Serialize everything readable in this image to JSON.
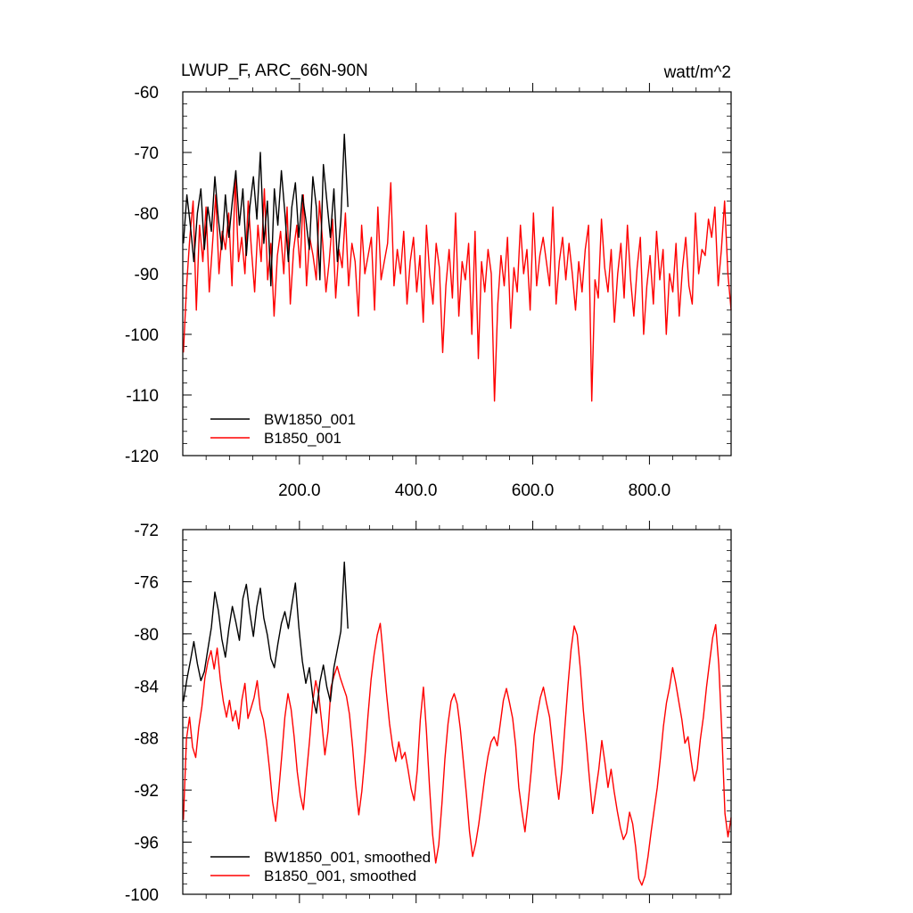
{
  "chart_data": [
    {
      "type": "line",
      "title": "LWUP_F, ARC_66N-90N",
      "units_label": "watt/m^2",
      "xlim": [
        0,
        940
      ],
      "ylim": [
        -120,
        -60
      ],
      "x_ticks": [
        200,
        400,
        600,
        800
      ],
      "x_tick_labels": [
        "200.0",
        "400.0",
        "600.0",
        "800.0"
      ],
      "y_ticks": [
        -120,
        -110,
        -100,
        -90,
        -80,
        -70,
        -60
      ],
      "y_tick_labels": [
        "-120",
        "-110",
        "-100",
        "-90",
        "-80",
        "-70",
        "-60"
      ],
      "legend_position": "bottom-left",
      "series": [
        {
          "name": "BW1850_001",
          "color": "#000000",
          "x_start": 1,
          "x_end": 283,
          "step": 6,
          "values": [
            -85,
            -77,
            -82,
            -88,
            -80,
            -76,
            -86,
            -79,
            -83,
            -74,
            -81,
            -86,
            -77,
            -84,
            -78,
            -73,
            -82,
            -76,
            -87,
            -79,
            -74,
            -81,
            -70,
            -85,
            -78,
            -92,
            -76,
            -82,
            -73,
            -80,
            -88,
            -79,
            -75,
            -84,
            -77,
            -81,
            -86,
            -74,
            -79,
            -91,
            -72,
            -78,
            -84,
            -76,
            -88,
            -81,
            -67,
            -79
          ]
        },
        {
          "name": "B1850_001",
          "color": "#ff0000",
          "x_start": 1,
          "x_end": 940,
          "step": 6,
          "values": [
            -103,
            -92,
            -84,
            -78,
            -96,
            -82,
            -88,
            -79,
            -93,
            -85,
            -77,
            -90,
            -83,
            -86,
            -80,
            -92,
            -74,
            -88,
            -84,
            -90,
            -78,
            -86,
            -93,
            -82,
            -88,
            -76,
            -91,
            -85,
            -97,
            -87,
            -83,
            -90,
            -79,
            -95,
            -86,
            -82,
            -89,
            -77,
            -92,
            -84,
            -87,
            -91,
            -78,
            -85,
            -93,
            -88,
            -81,
            -94,
            -86,
            -89,
            -80,
            -92,
            -85,
            -88,
            -97,
            -82,
            -90,
            -87,
            -84,
            -96,
            -79,
            -91,
            -88,
            -85,
            -75,
            -92,
            -86,
            -90,
            -83,
            -95,
            -88,
            -84,
            -93,
            -87,
            -98,
            -82,
            -90,
            -95,
            -85,
            -89,
            -103,
            -92,
            -86,
            -94,
            -80,
            -97,
            -88,
            -91,
            -85,
            -100,
            -83,
            -104,
            -88,
            -93,
            -86,
            -90,
            -111,
            -95,
            -87,
            -92,
            -84,
            -99,
            -89,
            -93,
            -82,
            -90,
            -86,
            -96,
            -80,
            -92,
            -87,
            -84,
            -88,
            -92,
            -79,
            -95,
            -88,
            -84,
            -91,
            -85,
            -90,
            -96,
            -88,
            -93,
            -86,
            -82,
            -111,
            -91,
            -94,
            -81,
            -89,
            -93,
            -86,
            -98,
            -90,
            -85,
            -94,
            -82,
            -91,
            -97,
            -89,
            -84,
            -100,
            -92,
            -87,
            -95,
            -83,
            -91,
            -86,
            -100,
            -90,
            -93,
            -85,
            -97,
            -89,
            -84,
            -92,
            -95,
            -80,
            -90,
            -86,
            -87,
            -81,
            -84,
            -79,
            -92,
            -86,
            -78,
            -90,
            -96
          ]
        }
      ]
    },
    {
      "type": "line",
      "xlim": [
        0,
        940
      ],
      "ylim": [
        -100,
        -72
      ],
      "y_ticks": [
        -100,
        -96,
        -92,
        -88,
        -84,
        -80,
        -76,
        -72
      ],
      "y_tick_labels": [
        "-100",
        "-96",
        "-92",
        "-88",
        "-84",
        "-80",
        "-76",
        "-72"
      ],
      "legend_position": "bottom-left",
      "series": [
        {
          "name": "BW1850_001, smoothed",
          "color": "#000000",
          "x_start": 1,
          "x_end": 283,
          "step": 6,
          "values": [
            -85.2,
            -83.5,
            -82.1,
            -80.6,
            -82.3,
            -83.6,
            -82.9,
            -81.2,
            -79.5,
            -76.8,
            -78.2,
            -80.4,
            -81.8,
            -79.6,
            -77.9,
            -79.1,
            -80.5,
            -77.3,
            -76.2,
            -78.4,
            -80.2,
            -77.9,
            -76.5,
            -78.8,
            -80.1,
            -81.9,
            -82.6,
            -80.8,
            -79.2,
            -78.3,
            -79.6,
            -77.8,
            -76.1,
            -79.5,
            -82.1,
            -83.8,
            -82.6,
            -84.9,
            -86.1,
            -83.7,
            -82.4,
            -84.1,
            -85.2,
            -82.6,
            -81.2,
            -79.8,
            -74.5,
            -79.6
          ]
        },
        {
          "name": "B1850_001, smoothed",
          "color": "#ff0000",
          "x_start": 1,
          "x_end": 940,
          "step": 6,
          "values": [
            -94.3,
            -88.1,
            -86.4,
            -88.7,
            -89.5,
            -87.2,
            -85.6,
            -83.4,
            -82.1,
            -81.3,
            -82.7,
            -81.1,
            -83.5,
            -85.2,
            -86.4,
            -85.1,
            -86.7,
            -85.9,
            -87.3,
            -85.1,
            -83.8,
            -86.5,
            -85.7,
            -84.9,
            -83.6,
            -85.8,
            -86.6,
            -88.2,
            -90.4,
            -92.9,
            -94.4,
            -92.1,
            -89.3,
            -86.4,
            -84.6,
            -85.8,
            -87.9,
            -90.6,
            -92.4,
            -93.5,
            -90.8,
            -88.2,
            -85.3,
            -83.6,
            -84.7,
            -86.9,
            -89.3,
            -87.5,
            -84.1,
            -83.2,
            -82.5,
            -83.4,
            -84.1,
            -84.8,
            -86.2,
            -88.7,
            -91.6,
            -93.9,
            -92.1,
            -89.4,
            -86.3,
            -83.5,
            -81.6,
            -80.1,
            -79.2,
            -81.8,
            -84.5,
            -86.9,
            -88.6,
            -89.8,
            -88.3,
            -89.6,
            -89.1,
            -90.4,
            -91.9,
            -92.8,
            -90.5,
            -86.6,
            -84.1,
            -87.5,
            -91.8,
            -95.4,
            -97.6,
            -96.2,
            -93.1,
            -89.6,
            -86.9,
            -85.2,
            -84.6,
            -85.4,
            -87.3,
            -89.8,
            -92.4,
            -95.2,
            -97.1,
            -96.1,
            -94.6,
            -92.8,
            -90.9,
            -89.4,
            -88.3,
            -87.9,
            -88.6,
            -86.9,
            -85.1,
            -84.2,
            -85.3,
            -86.5,
            -88.6,
            -91.8,
            -93.6,
            -95.2,
            -93.1,
            -90.6,
            -87.8,
            -86.2,
            -84.9,
            -84.1,
            -85.3,
            -86.4,
            -88.6,
            -90.8,
            -92.7,
            -90.4,
            -87.1,
            -83.9,
            -81.2,
            -79.4,
            -80.1,
            -82.7,
            -85.9,
            -88.5,
            -91.2,
            -93.8,
            -92.1,
            -90.4,
            -88.2,
            -89.9,
            -91.8,
            -90.4,
            -92.1,
            -93.6,
            -94.9,
            -95.8,
            -95.3,
            -93.7,
            -94.6,
            -96.4,
            -98.8,
            -99.3,
            -98.6,
            -97.1,
            -95.2,
            -93.5,
            -91.8,
            -89.6,
            -87.1,
            -85.3,
            -84.1,
            -82.6,
            -83.8,
            -85.2,
            -86.6,
            -88.4,
            -87.9,
            -89.7,
            -91.3,
            -90.4,
            -88.1,
            -86.4,
            -84.1,
            -82.2,
            -80.3,
            -79.3,
            -82.4,
            -87.6,
            -93.8,
            -95.6,
            -94.1
          ]
        }
      ]
    }
  ]
}
